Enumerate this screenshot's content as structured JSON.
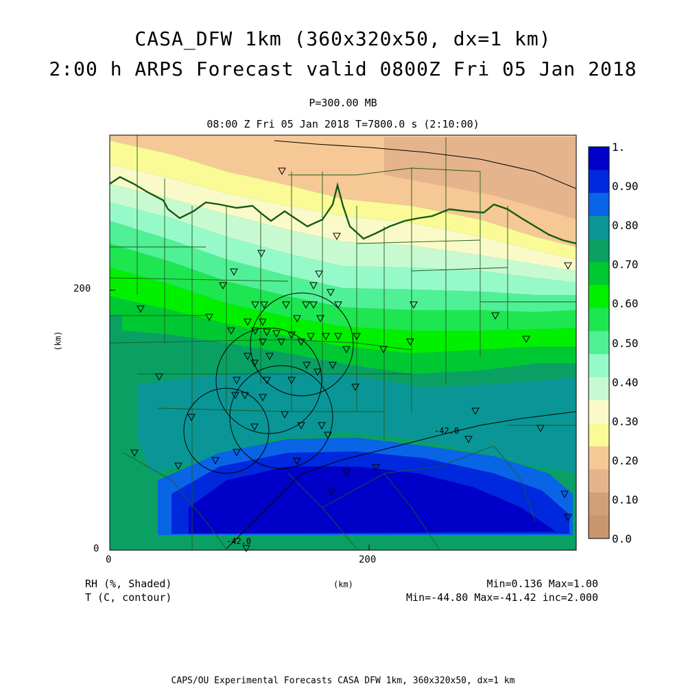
{
  "header": {
    "title_line1": "CASA_DFW 1km (360x320x50, dx=1 km)",
    "title_line2": "2:00 h ARPS Forecast valid 0800Z Fri 05 Jan 2018",
    "pressure_level": "P=300.00 MB",
    "time_line": "08:00 Z Fri 05 Jan 2018    T=7800.0 s (2:10:00)"
  },
  "axes": {
    "x_ticks": [
      "0",
      "200"
    ],
    "y_ticks": [
      "0",
      "200"
    ],
    "x_label": "(km)",
    "y_label": "(km)"
  },
  "colorbar": {
    "labels": [
      "1.",
      "0.90",
      "0.80",
      "0.70",
      "0.60",
      "0.50",
      "0.40",
      "0.30",
      "0.20",
      "0.10",
      "0.0"
    ],
    "colors": [
      "#0000c8",
      "#0028dc",
      "#0a64e6",
      "#0a9696",
      "#0aa064",
      "#00c832",
      "#00f000",
      "#1ee650",
      "#50f096",
      "#96fac8",
      "#c8fad2",
      "#fafac8",
      "#fafa96",
      "#f5c896",
      "#e6b48c",
      "#d2a078",
      "#c8966e"
    ]
  },
  "contours": {
    "label_mid": "-42.0",
    "label_bottom": "-42.0"
  },
  "footer": {
    "field1": "RH (%, Shaded)",
    "field2": "T (C, contour)",
    "stats1": "Min=0.136 Max=1.00",
    "stats2": "Min=-44.80 Max=-41.42 inc=2.000",
    "credit": "CAPS/OU Experimental Forecasts  CASA DFW 1km, 360x320x50, dx=1 km"
  }
}
